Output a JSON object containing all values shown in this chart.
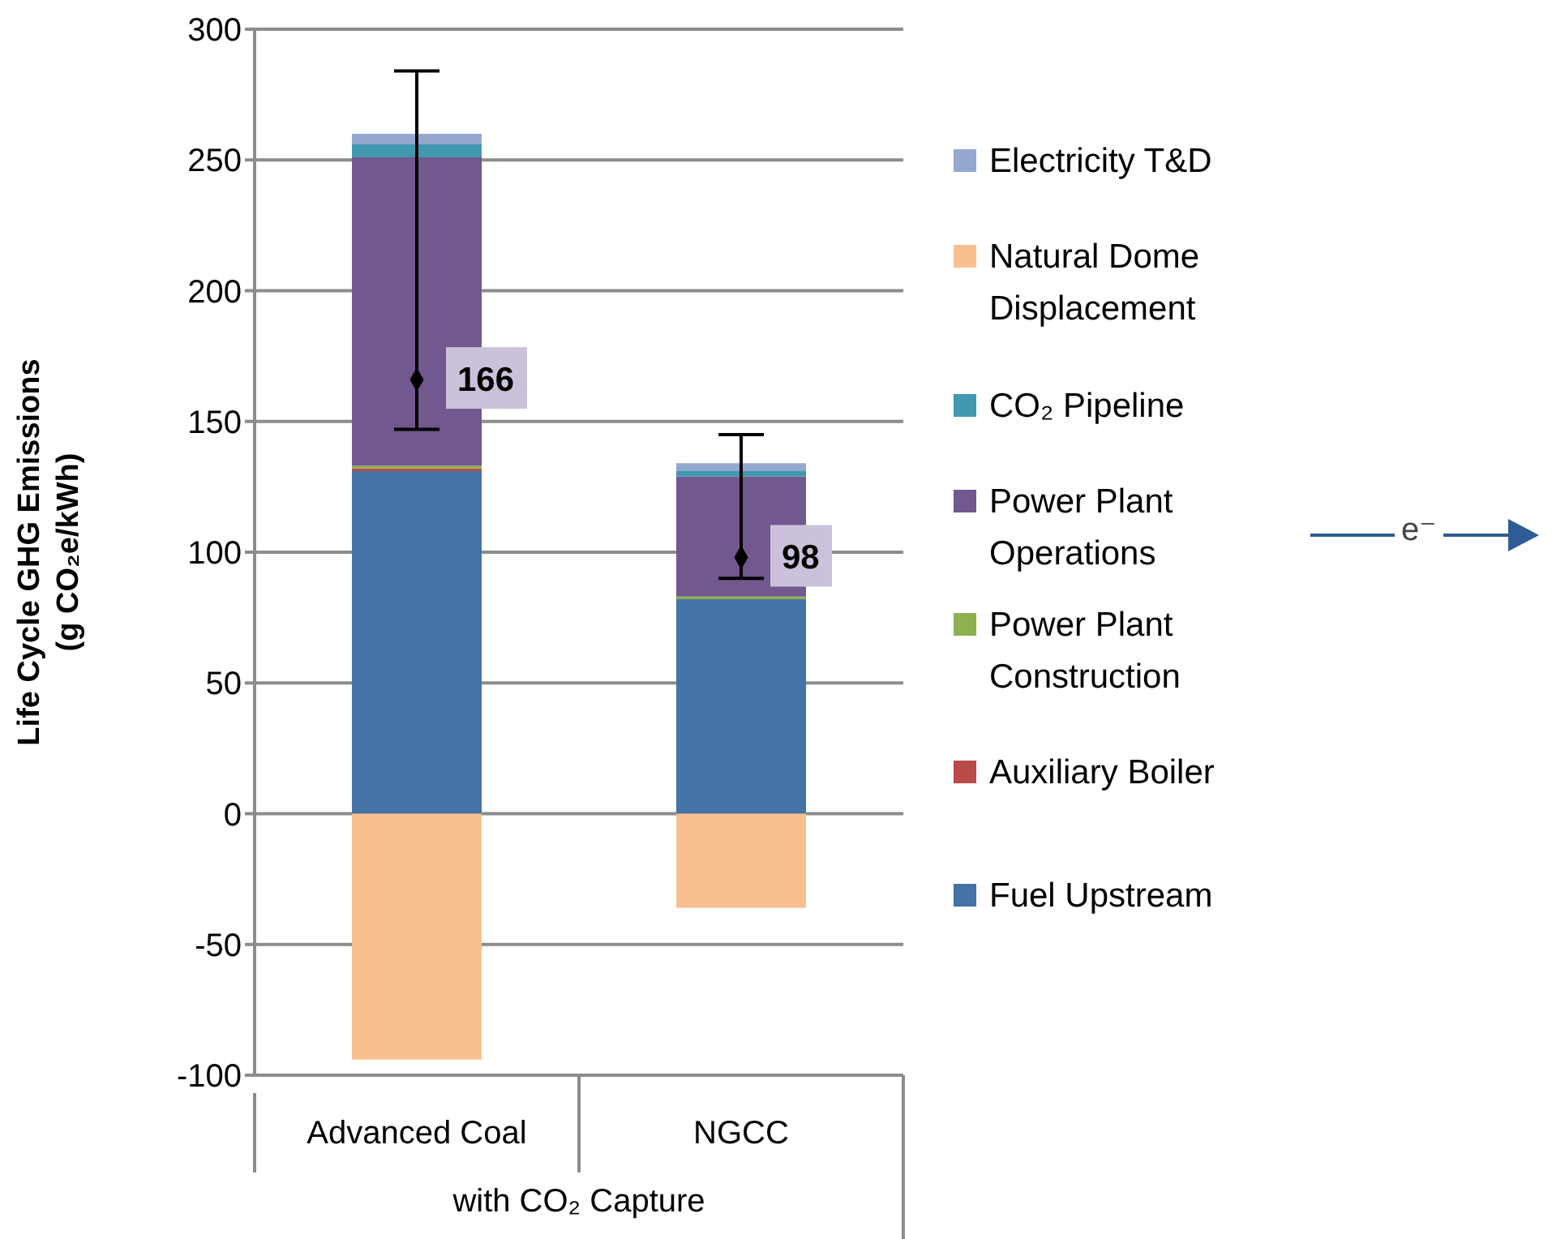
{
  "chart_data": {
    "type": "bar",
    "stacked": true,
    "categories": [
      "Advanced Coal",
      "NGCC"
    ],
    "xlabel": "with CO₂ Capture",
    "ylabel": "Life Cycle GHG Emissions\n(g CO₂e/kWh)",
    "ylim": [
      -100,
      300
    ],
    "yticks": [
      -100,
      -50,
      0,
      50,
      100,
      150,
      200,
      250,
      300
    ],
    "grid": "y",
    "legend": "right",
    "series": [
      {
        "name": "Fuel Upstream",
        "color": "#4572a7",
        "values": [
          131,
          82
        ]
      },
      {
        "name": "Auxiliary Boiler",
        "color": "#b94a48",
        "values": [
          1,
          0
        ]
      },
      {
        "name": "Power Plant Construction",
        "color": "#8fb04f",
        "values": [
          1,
          1
        ]
      },
      {
        "name": "Power Plant Operations",
        "color": "#71588f",
        "values": [
          118,
          46
        ]
      },
      {
        "name": "CO₂ Pipeline",
        "color": "#4198af",
        "values": [
          5,
          2
        ]
      },
      {
        "name": "Natural Dome Displacement",
        "color": "#f9c08f",
        "values": [
          -94,
          -36
        ]
      },
      {
        "name": "Electricity T&D",
        "color": "#93a9cf",
        "values": [
          4,
          3
        ]
      },
      {
        "type": "scatter",
        "color": "#000000",
        "marker": "diamond",
        "x": [
          "Advanced Coal",
          "NGCC"
        ],
        "values": [
          166,
          98
        ],
        "errors": [
          [
            147,
            284
          ],
          [
            90,
            145
          ]
        ],
        "value_labels": [
          "166",
          "98"
        ]
      }
    ],
    "annotations": [
      "e⁻"
    ]
  }
}
